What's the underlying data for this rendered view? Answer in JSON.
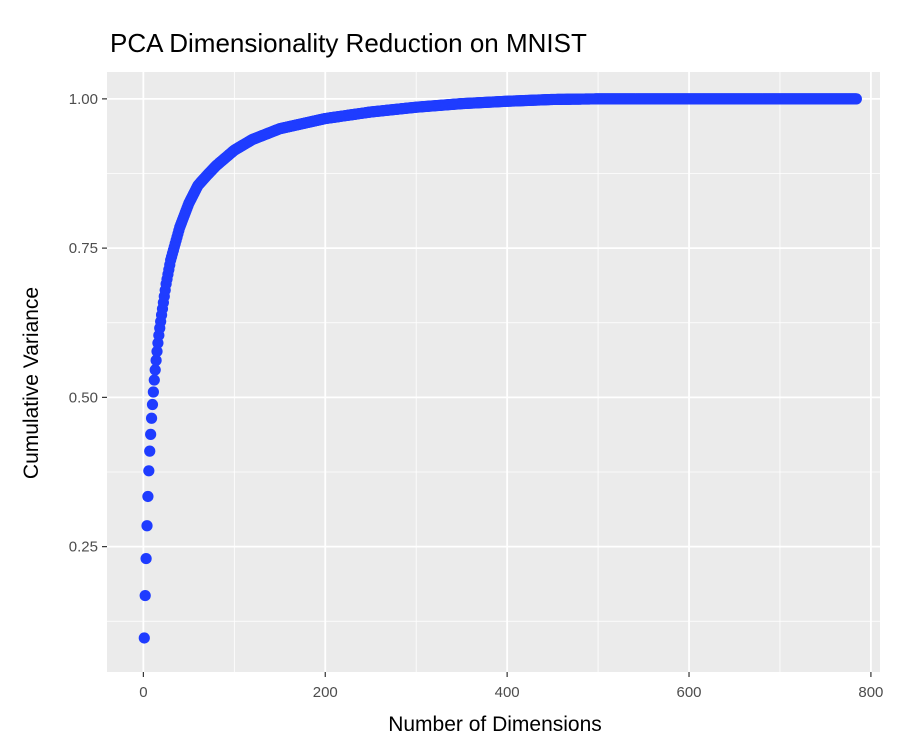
{
  "chart_data": {
    "type": "scatter",
    "title": "PCA Dimensionality Reduction on MNIST",
    "subtitle": "",
    "xlabel": "Number of Dimensions",
    "ylabel": "Cumulative Variance",
    "xlim": [
      -40,
      810
    ],
    "ylim": [
      0.04,
      1.045
    ],
    "x_ticks": [
      0,
      200,
      400,
      600,
      800
    ],
    "x_tick_labels": [
      "0",
      "200",
      "400",
      "600",
      "800"
    ],
    "y_ticks": [
      0.25,
      0.5,
      0.75,
      1.0
    ],
    "y_tick_labels": [
      "0.25",
      "0.50",
      "0.75",
      "1.00"
    ],
    "grid": true,
    "legend": "none",
    "n_points": 784,
    "point_color": "#1f3cff",
    "panel_background": "#ebebeb",
    "grid_color": "#ffffff",
    "series": [
      {
        "x": [
          1,
          2,
          3,
          4,
          5,
          6,
          7,
          8,
          9,
          10,
          11,
          12,
          13,
          14,
          15,
          16,
          17,
          18,
          19,
          20,
          25,
          30,
          40,
          50,
          60,
          70,
          80,
          100,
          120,
          150,
          200,
          250,
          300,
          350,
          400,
          450,
          500,
          600,
          700,
          784
        ],
        "y": [
          0.097,
          0.168,
          0.23,
          0.285,
          0.334,
          0.377,
          0.41,
          0.438,
          0.465,
          0.488,
          0.509,
          0.529,
          0.546,
          0.562,
          0.577,
          0.591,
          0.604,
          0.616,
          0.627,
          0.638,
          0.69,
          0.73,
          0.785,
          0.825,
          0.855,
          0.872,
          0.888,
          0.914,
          0.932,
          0.95,
          0.967,
          0.978,
          0.986,
          0.992,
          0.996,
          0.999,
          1.0,
          1.0,
          1.0,
          1.0
        ]
      }
    ]
  }
}
